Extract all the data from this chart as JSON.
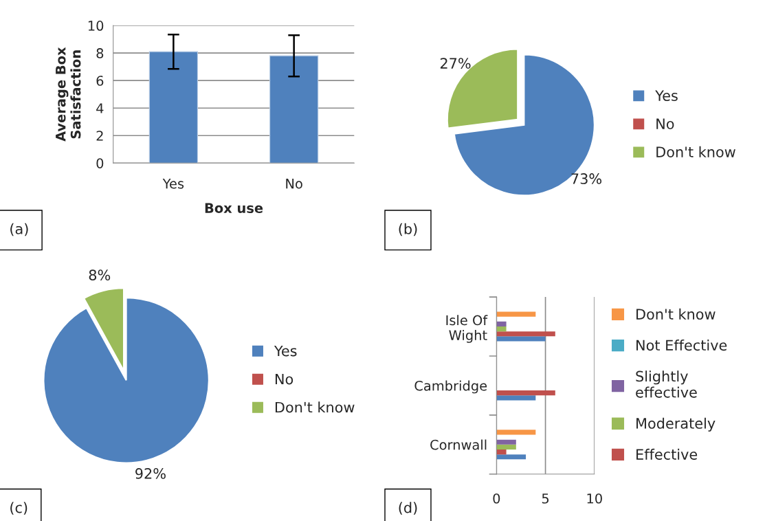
{
  "chart_data": [
    {
      "type": "bar",
      "categories": [
        "Yes",
        "No"
      ],
      "values": [
        8.1,
        7.8
      ],
      "errors": [
        1.25,
        1.5
      ],
      "color": "#4f81bd",
      "xlabel": "Box use",
      "ylabel": "Average Box\nSatisfaction",
      "ylim": [
        0,
        10
      ],
      "yticks": [
        0,
        2,
        4,
        6,
        8,
        10
      ],
      "grid": "y",
      "annotations": [
        "(a)"
      ]
    },
    {
      "type": "pie",
      "categories": [
        "Yes",
        "No",
        "Don't know"
      ],
      "values": [
        73,
        0,
        27
      ],
      "colors": [
        "#4f81bd",
        "#c0504d",
        "#9bbb59"
      ],
      "value_labels": [
        "73%",
        null,
        "27%"
      ],
      "legend": "right",
      "annotations": [
        "(b)"
      ]
    },
    {
      "type": "pie",
      "categories": [
        "Yes",
        "No",
        "Don't know"
      ],
      "values": [
        92,
        0,
        8
      ],
      "colors": [
        "#4f81bd",
        "#c0504d",
        "#9bbb59"
      ],
      "value_labels": [
        "92%",
        null,
        "8%"
      ],
      "legend": "right",
      "annotations": [
        "(c)"
      ]
    },
    {
      "type": "bar",
      "orientation": "horizontal",
      "categories": [
        "Isle Of\nWight",
        "Cambridge",
        "Cornwall"
      ],
      "xlim": [
        0,
        10
      ],
      "xticks": [
        0,
        5,
        10
      ],
      "grid": "x",
      "legend": "right",
      "annotations": [
        "(d)"
      ],
      "series": [
        {
          "color": "#4f81bd",
          "values": [
            5,
            4,
            3
          ]
        },
        {
          "name": "Effective",
          "color": "#c0504d",
          "values": [
            6,
            6,
            1
          ]
        },
        {
          "name": "Moderately",
          "color": "#9bbb59",
          "values": [
            1,
            0,
            2
          ]
        },
        {
          "name": "Slightly\neffective",
          "color": "#8064a2",
          "values": [
            1,
            0,
            2
          ]
        },
        {
          "name": "Not Effective",
          "color": "#4bacc6",
          "values": [
            0,
            0,
            0
          ]
        },
        {
          "name": "Don't know",
          "color": "#f79646",
          "values": [
            4,
            0,
            4
          ]
        }
      ]
    }
  ]
}
